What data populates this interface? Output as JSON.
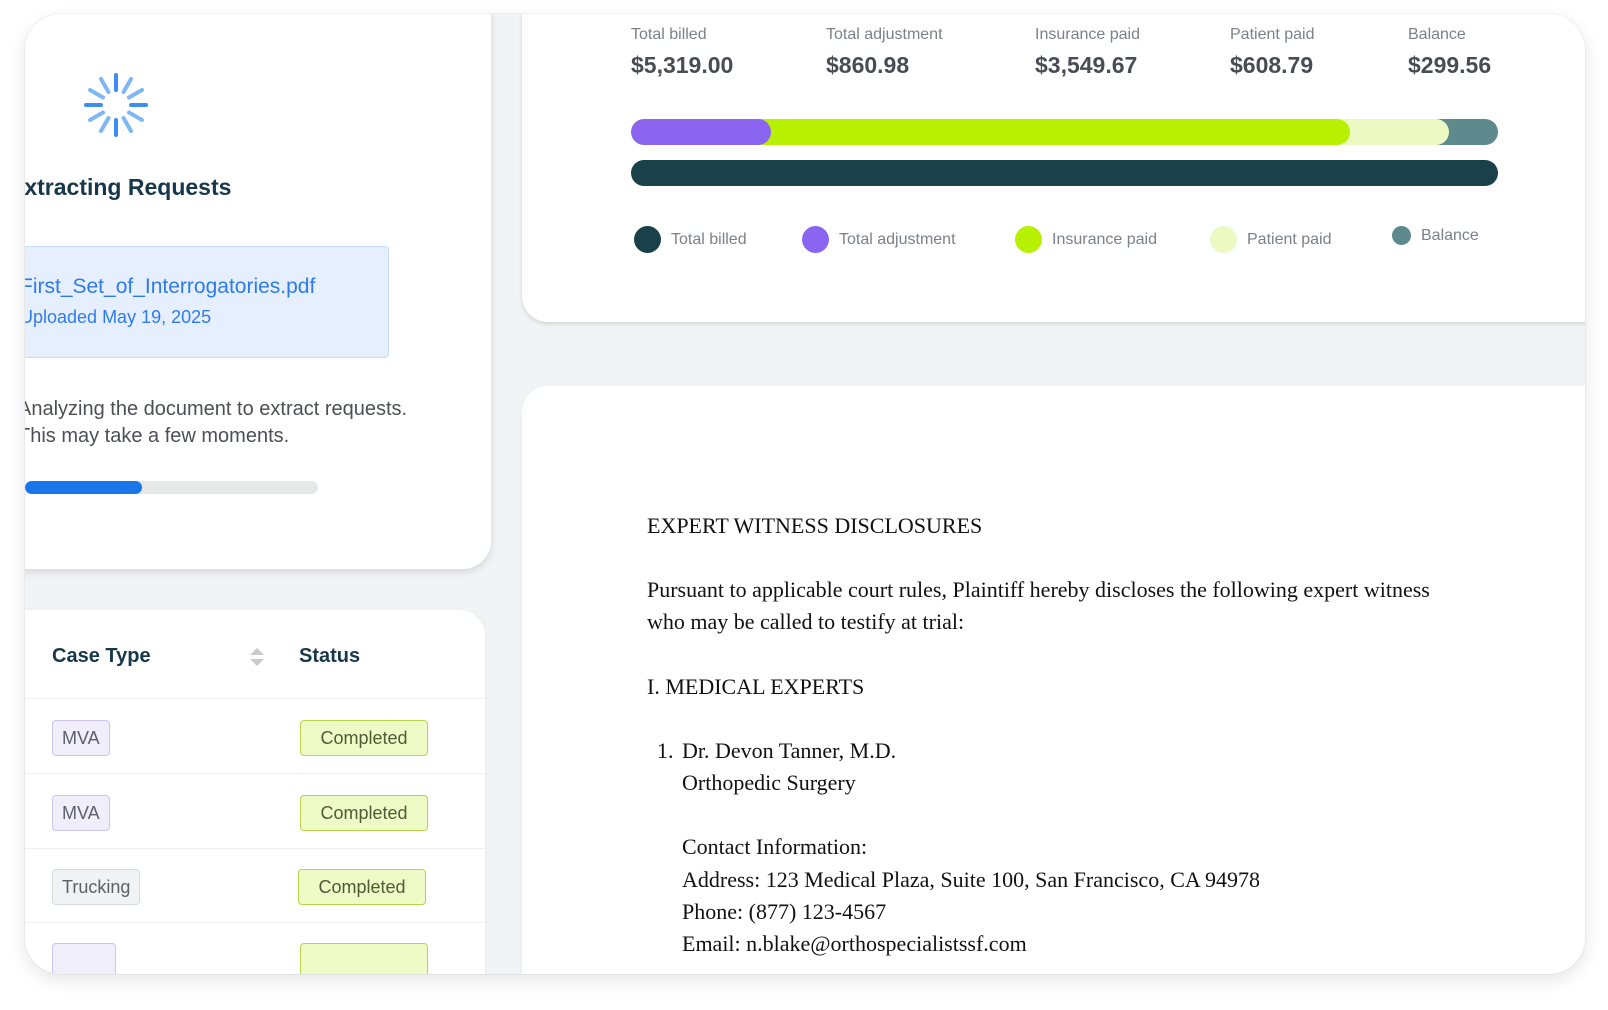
{
  "extract": {
    "title": "Extracting Requests",
    "file_name": "First_Set_of_Interrogatories.pdf",
    "upload_date": "Uploaded May 19, 2025",
    "message_line1": "Analyzing the document to extract requests.",
    "message_line2": "This may take a few moments.",
    "progress_percent": 40
  },
  "cases_table": {
    "headers": {
      "case_type": "Case Type",
      "status": "Status"
    },
    "rows": [
      {
        "case_type": "MVA",
        "status": "Completed"
      },
      {
        "case_type": "MVA",
        "status": "Completed"
      },
      {
        "case_type": "Trucking",
        "status": "Completed"
      }
    ]
  },
  "billing": {
    "stats": [
      {
        "label": "Total billed",
        "value": "$5,319.00"
      },
      {
        "label": "Total adjustment",
        "value": "$860.98"
      },
      {
        "label": "Insurance paid",
        "value": "$3,549.67"
      },
      {
        "label": "Patient paid",
        "value": "$608.79"
      },
      {
        "label": "Balance",
        "value": "$299.56"
      }
    ],
    "legend": [
      {
        "label": "Total billed",
        "color": "#1a414a"
      },
      {
        "label": "Total adjustment",
        "color": "#8b65f0"
      },
      {
        "label": "Insurance paid",
        "color": "#b7f000"
      },
      {
        "label": "Patient paid",
        "color": "#ecf9c3"
      },
      {
        "label": "Balance",
        "color": "#5e8a8e"
      }
    ],
    "breakdown_values": {
      "adjustment": 860.98,
      "insurance": 3549.67,
      "patient": 608.79,
      "balance": 299.56,
      "total": 5319.0
    }
  },
  "document": {
    "heading": "EXPERT WITNESS DISCLOSURES",
    "intro_line1": "Pursuant to applicable court rules, Plaintiff hereby discloses the following expert witness",
    "intro_line2": "who may be called to testify at trial:",
    "section": "I. MEDICAL EXPERTS",
    "item_number": "1.",
    "expert_name": "Dr. Devon Tanner, M.D.",
    "specialty": "Orthopedic Surgery",
    "contact_label": "Contact Information:",
    "address": "Address: 123 Medical Plaza, Suite 100, San Francisco, CA 94978",
    "phone": "Phone: (877) 123-4567",
    "email": "Email: n.blake@orthospecialistssf.com"
  }
}
